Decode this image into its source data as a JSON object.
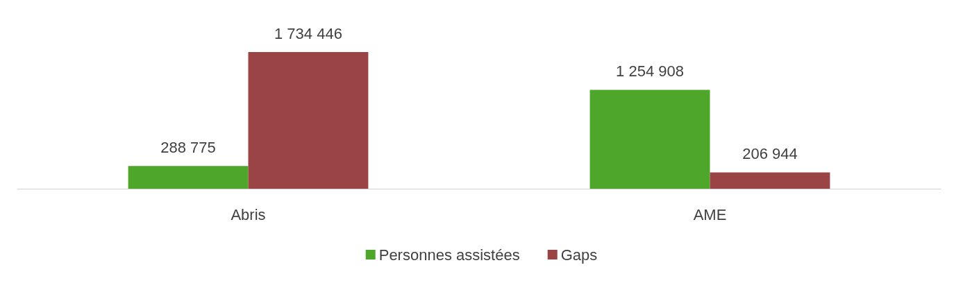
{
  "chart_data": {
    "type": "bar",
    "categories": [
      "Abris",
      "AME"
    ],
    "series": [
      {
        "name": "Personnes assistées",
        "color": "#4ea72a",
        "values": [
          288775,
          1254908
        ],
        "value_labels": [
          "288 775",
          "1 254 908"
        ]
      },
      {
        "name": "Gaps",
        "color": "#9a4446",
        "values": [
          1734446,
          206944
        ],
        "value_labels": [
          "1 734 446",
          "206 944"
        ]
      }
    ],
    "legend": "bottom",
    "grid": false
  }
}
